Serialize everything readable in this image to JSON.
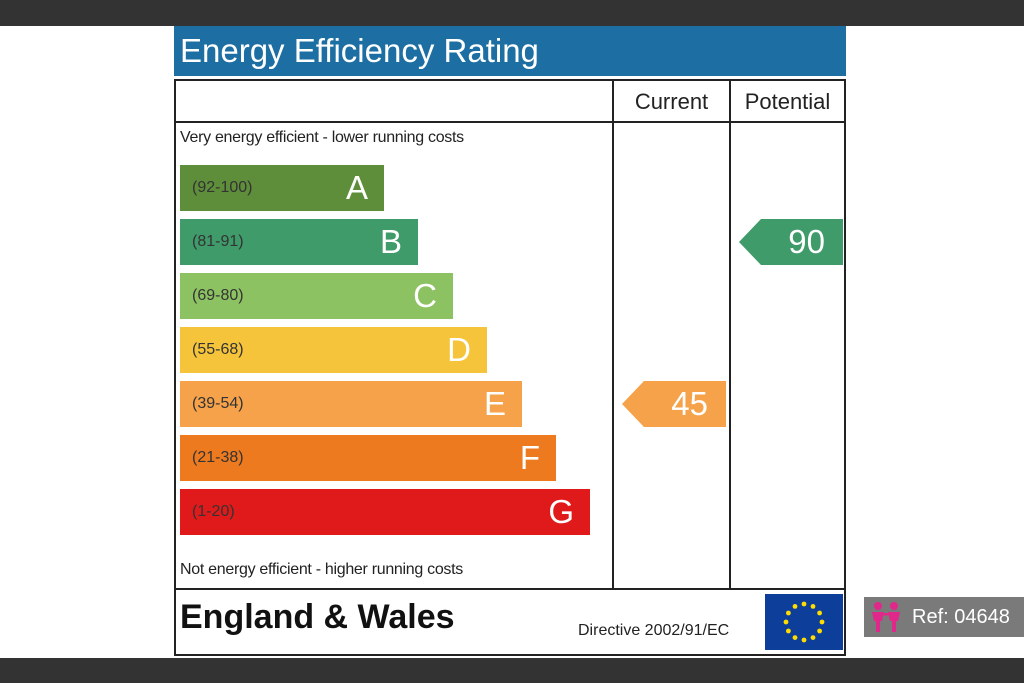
{
  "title": "Energy Efficiency Rating",
  "columns": {
    "current": "Current",
    "potential": "Potential"
  },
  "top_caption": "Very energy efficient - lower running costs",
  "bottom_caption": "Not energy efficient - higher running costs",
  "footer": {
    "country": "England & Wales",
    "directive": "Directive 2002/91/EC",
    "flag_icon": "eu-flag-icon"
  },
  "reference": {
    "label": "Ref: 04648",
    "icon": "people-icon"
  },
  "chart_data": {
    "type": "bar",
    "title": "Energy Efficiency Rating",
    "bands": [
      {
        "letter": "A",
        "range": "(92-100)",
        "color": "#5e8e3a"
      },
      {
        "letter": "B",
        "range": "(81-91)",
        "color": "#3f9b6a"
      },
      {
        "letter": "C",
        "range": "(69-80)",
        "color": "#8dc262"
      },
      {
        "letter": "D",
        "range": "(55-68)",
        "color": "#f6c43b"
      },
      {
        "letter": "E",
        "range": "(39-54)",
        "color": "#f5a24a"
      },
      {
        "letter": "F",
        "range": "(21-38)",
        "color": "#ee7a1f"
      },
      {
        "letter": "G",
        "range": "(1-20)",
        "color": "#e01a1a"
      }
    ],
    "current": {
      "value": 45,
      "band": "E",
      "color": "#f5a24a"
    },
    "potential": {
      "value": 90,
      "band": "B",
      "color": "#3f9b6a"
    }
  }
}
